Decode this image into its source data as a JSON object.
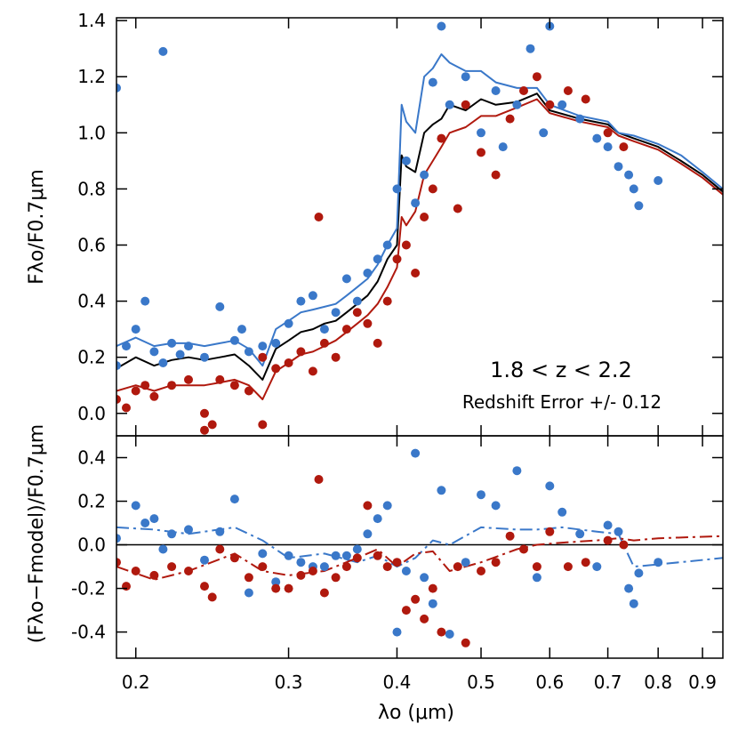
{
  "chart_data": [
    {
      "type": "scatter",
      "panel": "top",
      "ylabel": "Fλo/F0.7μm",
      "xscale": "log",
      "xlim": [
        0.19,
        0.95
      ],
      "ylim": [
        -0.08,
        1.41
      ],
      "yticks": [
        0.0,
        0.2,
        0.4,
        0.6,
        0.8,
        1.0,
        1.2,
        1.4
      ],
      "ytick_labels": [
        "0.0",
        "0.2",
        "0.4",
        "0.6",
        "0.8",
        "1.0",
        "1.2",
        "1.4"
      ],
      "annotation_range": "1.8 < z < 2.2",
      "annotation_error": "Redshift Error +/- 0.12",
      "colors": {
        "blue": "#3a78c9",
        "red": "#b0190e",
        "black": "#000000"
      },
      "series": [
        {
          "name": "model template (central)",
          "kind": "line",
          "color": "#000000",
          "x": [
            0.19,
            0.2,
            0.21,
            0.22,
            0.23,
            0.24,
            0.25,
            0.26,
            0.27,
            0.28,
            0.29,
            0.3,
            0.31,
            0.32,
            0.33,
            0.34,
            0.35,
            0.36,
            0.37,
            0.38,
            0.39,
            0.4,
            0.405,
            0.41,
            0.42,
            0.43,
            0.44,
            0.45,
            0.46,
            0.48,
            0.5,
            0.52,
            0.55,
            0.58,
            0.6,
            0.65,
            0.7,
            0.72,
            0.75,
            0.8,
            0.85,
            0.9,
            0.95
          ],
          "y": [
            0.16,
            0.2,
            0.17,
            0.19,
            0.2,
            0.19,
            0.2,
            0.21,
            0.17,
            0.12,
            0.23,
            0.26,
            0.29,
            0.3,
            0.32,
            0.33,
            0.36,
            0.39,
            0.42,
            0.47,
            0.55,
            0.6,
            0.92,
            0.88,
            0.86,
            1.0,
            1.03,
            1.05,
            1.1,
            1.08,
            1.12,
            1.1,
            1.11,
            1.14,
            1.08,
            1.05,
            1.03,
            1.0,
            0.98,
            0.95,
            0.9,
            0.85,
            0.79
          ]
        },
        {
          "name": "model template (upper)",
          "kind": "line",
          "color": "#3a78c9",
          "x": [
            0.19,
            0.2,
            0.21,
            0.22,
            0.23,
            0.24,
            0.25,
            0.26,
            0.27,
            0.28,
            0.29,
            0.3,
            0.31,
            0.32,
            0.33,
            0.34,
            0.35,
            0.36,
            0.37,
            0.38,
            0.39,
            0.4,
            0.405,
            0.41,
            0.42,
            0.43,
            0.44,
            0.45,
            0.46,
            0.48,
            0.5,
            0.52,
            0.55,
            0.58,
            0.6,
            0.65,
            0.7,
            0.72,
            0.75,
            0.8,
            0.85,
            0.9,
            0.95
          ],
          "y": [
            0.24,
            0.27,
            0.24,
            0.25,
            0.25,
            0.24,
            0.25,
            0.26,
            0.23,
            0.17,
            0.3,
            0.33,
            0.36,
            0.37,
            0.38,
            0.39,
            0.42,
            0.45,
            0.48,
            0.53,
            0.6,
            0.66,
            1.1,
            1.04,
            1.0,
            1.2,
            1.23,
            1.28,
            1.25,
            1.22,
            1.22,
            1.18,
            1.16,
            1.16,
            1.1,
            1.06,
            1.04,
            1.0,
            0.99,
            0.96,
            0.92,
            0.86,
            0.8
          ]
        },
        {
          "name": "model template (lower)",
          "kind": "line",
          "color": "#b0190e",
          "x": [
            0.19,
            0.2,
            0.21,
            0.22,
            0.23,
            0.24,
            0.25,
            0.26,
            0.27,
            0.28,
            0.29,
            0.3,
            0.31,
            0.32,
            0.33,
            0.34,
            0.35,
            0.36,
            0.37,
            0.38,
            0.39,
            0.4,
            0.405,
            0.41,
            0.42,
            0.43,
            0.44,
            0.45,
            0.46,
            0.48,
            0.5,
            0.52,
            0.55,
            0.58,
            0.6,
            0.65,
            0.7,
            0.72,
            0.75,
            0.8,
            0.85,
            0.9,
            0.95
          ],
          "y": [
            0.08,
            0.1,
            0.08,
            0.1,
            0.1,
            0.1,
            0.11,
            0.12,
            0.1,
            0.05,
            0.15,
            0.18,
            0.21,
            0.22,
            0.24,
            0.26,
            0.29,
            0.32,
            0.35,
            0.39,
            0.45,
            0.52,
            0.7,
            0.67,
            0.72,
            0.85,
            0.9,
            0.95,
            1.0,
            1.02,
            1.06,
            1.06,
            1.09,
            1.12,
            1.07,
            1.04,
            1.02,
            0.99,
            0.97,
            0.94,
            0.89,
            0.84,
            0.78
          ]
        },
        {
          "name": "observed (blue)",
          "kind": "points",
          "color": "#3a78c9",
          "x": [
            0.19,
            0.195,
            0.2,
            0.205,
            0.21,
            0.215,
            0.22,
            0.225,
            0.23,
            0.24,
            0.25,
            0.26,
            0.265,
            0.27,
            0.28,
            0.29,
            0.3,
            0.31,
            0.32,
            0.33,
            0.34,
            0.35,
            0.36,
            0.37,
            0.38,
            0.39,
            0.4,
            0.41,
            0.42,
            0.43,
            0.44,
            0.45,
            0.46,
            0.48,
            0.5,
            0.52,
            0.53,
            0.55,
            0.57,
            0.59,
            0.6,
            0.62,
            0.65,
            0.68,
            0.7,
            0.72,
            0.74,
            0.75,
            0.76,
            0.8,
            0.215,
            0.19
          ],
          "y": [
            0.17,
            0.24,
            0.3,
            0.4,
            0.22,
            0.18,
            0.25,
            0.21,
            0.24,
            0.2,
            0.38,
            0.26,
            0.3,
            0.22,
            0.24,
            0.25,
            0.32,
            0.4,
            0.42,
            0.3,
            0.36,
            0.48,
            0.4,
            0.5,
            0.55,
            0.6,
            0.8,
            0.9,
            0.75,
            0.85,
            1.18,
            1.38,
            1.1,
            1.2,
            1.0,
            1.15,
            0.95,
            1.1,
            1.3,
            1.0,
            1.38,
            1.1,
            1.05,
            0.98,
            0.95,
            0.88,
            0.85,
            0.8,
            0.74,
            0.83,
            1.29,
            1.16
          ]
        },
        {
          "name": "observed (red)",
          "kind": "points",
          "color": "#b0190e",
          "x": [
            0.19,
            0.195,
            0.2,
            0.205,
            0.21,
            0.22,
            0.23,
            0.24,
            0.245,
            0.25,
            0.26,
            0.27,
            0.28,
            0.29,
            0.3,
            0.31,
            0.32,
            0.325,
            0.33,
            0.34,
            0.35,
            0.36,
            0.37,
            0.38,
            0.39,
            0.4,
            0.41,
            0.42,
            0.43,
            0.44,
            0.45,
            0.47,
            0.48,
            0.5,
            0.52,
            0.54,
            0.56,
            0.58,
            0.6,
            0.63,
            0.66,
            0.7,
            0.73,
            0.24,
            0.28
          ],
          "y": [
            0.05,
            0.02,
            0.08,
            0.1,
            0.06,
            0.1,
            0.12,
            0.0,
            -0.04,
            0.12,
            0.1,
            0.08,
            0.2,
            0.16,
            0.18,
            0.22,
            0.15,
            0.7,
            0.25,
            0.2,
            0.3,
            0.36,
            0.32,
            0.25,
            0.4,
            0.55,
            0.6,
            0.5,
            0.7,
            0.8,
            0.98,
            0.73,
            1.1,
            0.93,
            0.85,
            1.05,
            1.15,
            1.2,
            1.1,
            1.15,
            1.12,
            1.0,
            0.95,
            -0.06,
            -0.04
          ]
        }
      ]
    },
    {
      "type": "scatter",
      "panel": "bottom",
      "ylabel": "(Fλo−Fmodel)/F0.7μm",
      "xlabel": "λo (μm)",
      "xscale": "log",
      "xlim": [
        0.19,
        0.95
      ],
      "ylim": [
        -0.52,
        0.5
      ],
      "yticks": [
        -0.4,
        -0.2,
        0.0,
        0.2,
        0.4
      ],
      "ytick_labels": [
        "-0.4",
        "-0.2",
        "0.0",
        "0.2",
        "0.4"
      ],
      "xticks": [
        0.2,
        0.3,
        0.4,
        0.5,
        0.6,
        0.7,
        0.8,
        0.9
      ],
      "xtick_labels": [
        "0.2",
        "0.3",
        "0.4",
        "0.5",
        "0.6",
        "0.7",
        "0.8",
        "0.9"
      ],
      "series": [
        {
          "name": "zero line",
          "kind": "line",
          "color": "#000000",
          "x": [
            0.19,
            0.95
          ],
          "y": [
            0.0,
            0.0
          ]
        },
        {
          "name": "running mean (blue)",
          "kind": "dashdot",
          "color": "#3a78c9",
          "x": [
            0.19,
            0.21,
            0.23,
            0.26,
            0.28,
            0.3,
            0.33,
            0.36,
            0.38,
            0.4,
            0.42,
            0.44,
            0.46,
            0.5,
            0.55,
            0.58,
            0.62,
            0.68,
            0.72,
            0.75,
            0.8,
            0.95
          ],
          "y": [
            0.08,
            0.07,
            0.05,
            0.08,
            0.02,
            -0.06,
            -0.04,
            -0.08,
            -0.05,
            -0.1,
            -0.06,
            0.02,
            0.0,
            0.08,
            0.07,
            0.07,
            0.08,
            0.06,
            0.05,
            -0.1,
            -0.09,
            -0.06
          ]
        },
        {
          "name": "running mean (red)",
          "kind": "dashdot",
          "color": "#b0190e",
          "x": [
            0.19,
            0.21,
            0.23,
            0.26,
            0.28,
            0.3,
            0.33,
            0.36,
            0.38,
            0.4,
            0.42,
            0.44,
            0.46,
            0.5,
            0.55,
            0.58,
            0.62,
            0.68,
            0.72,
            0.75,
            0.8,
            0.95
          ],
          "y": [
            -0.1,
            -0.16,
            -0.12,
            -0.04,
            -0.12,
            -0.14,
            -0.12,
            -0.06,
            -0.02,
            -0.1,
            -0.04,
            -0.03,
            -0.12,
            -0.08,
            -0.02,
            0.0,
            0.01,
            0.02,
            0.03,
            0.02,
            0.03,
            0.04
          ]
        },
        {
          "name": "residuals (blue)",
          "kind": "points",
          "color": "#3a78c9",
          "x": [
            0.19,
            0.2,
            0.205,
            0.21,
            0.215,
            0.22,
            0.23,
            0.24,
            0.25,
            0.26,
            0.27,
            0.28,
            0.29,
            0.3,
            0.31,
            0.32,
            0.33,
            0.34,
            0.35,
            0.36,
            0.37,
            0.38,
            0.39,
            0.4,
            0.41,
            0.42,
            0.43,
            0.44,
            0.45,
            0.46,
            0.48,
            0.5,
            0.52,
            0.55,
            0.58,
            0.6,
            0.62,
            0.65,
            0.68,
            0.7,
            0.72,
            0.74,
            0.75,
            0.76,
            0.8
          ],
          "y": [
            0.03,
            0.18,
            0.1,
            0.12,
            -0.02,
            0.05,
            0.07,
            -0.07,
            0.06,
            0.21,
            -0.22,
            -0.04,
            -0.17,
            -0.05,
            -0.08,
            -0.1,
            -0.1,
            -0.05,
            -0.05,
            -0.02,
            0.05,
            0.12,
            0.18,
            -0.4,
            -0.12,
            0.42,
            -0.15,
            -0.27,
            0.25,
            -0.41,
            -0.08,
            0.23,
            0.18,
            0.34,
            -0.15,
            0.27,
            0.15,
            0.05,
            -0.1,
            0.09,
            0.06,
            -0.2,
            -0.27,
            -0.13,
            -0.08
          ]
        },
        {
          "name": "residuals (red)",
          "kind": "points",
          "color": "#b0190e",
          "x": [
            0.19,
            0.195,
            0.2,
            0.21,
            0.22,
            0.23,
            0.24,
            0.245,
            0.25,
            0.26,
            0.27,
            0.28,
            0.29,
            0.3,
            0.31,
            0.32,
            0.325,
            0.33,
            0.34,
            0.35,
            0.36,
            0.37,
            0.38,
            0.39,
            0.4,
            0.41,
            0.42,
            0.43,
            0.44,
            0.45,
            0.47,
            0.48,
            0.5,
            0.52,
            0.54,
            0.56,
            0.58,
            0.6,
            0.63,
            0.66,
            0.7,
            0.73
          ],
          "y": [
            -0.08,
            -0.19,
            -0.12,
            -0.14,
            -0.1,
            -0.12,
            -0.19,
            -0.24,
            -0.02,
            -0.06,
            -0.15,
            -0.1,
            -0.2,
            -0.2,
            -0.14,
            -0.12,
            0.3,
            -0.22,
            -0.15,
            -0.1,
            -0.06,
            0.18,
            -0.05,
            -0.1,
            -0.08,
            -0.3,
            -0.25,
            -0.34,
            -0.2,
            -0.4,
            -0.1,
            -0.45,
            -0.12,
            -0.08,
            0.04,
            -0.02,
            -0.1,
            0.06,
            -0.1,
            -0.08,
            0.02,
            0.0
          ]
        }
      ]
    }
  ]
}
